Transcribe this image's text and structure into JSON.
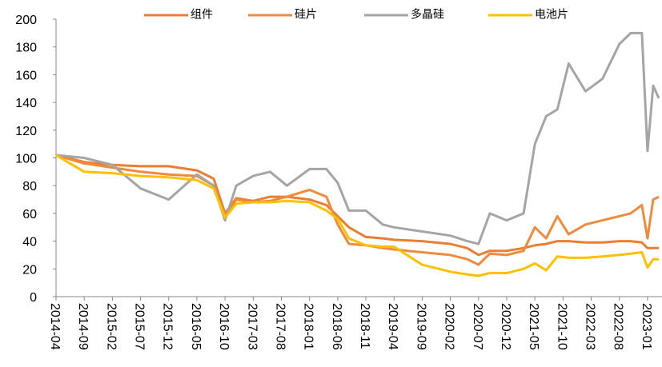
{
  "chart_data": {
    "type": "line",
    "x": [
      "2014-04",
      "2014-09",
      "2015-02",
      "2015-07",
      "2015-12",
      "2016-05",
      "2016-08",
      "2016-10",
      "2016-12",
      "2017-03",
      "2017-06",
      "2017-09",
      "2018-01",
      "2018-04",
      "2018-06",
      "2018-08",
      "2018-11",
      "2019-02",
      "2019-04",
      "2019-09",
      "2020-02",
      "2020-05",
      "2020-07",
      "2020-09",
      "2020-12",
      "2021-03",
      "2021-05",
      "2021-07",
      "2021-09",
      "2021-11",
      "2022-02",
      "2022-05",
      "2022-08",
      "2022-10",
      "2022-12",
      "2023-01",
      "2023-02",
      "2023-03"
    ],
    "series": [
      {
        "name": "组件",
        "color": "#ed7d31",
        "values": [
          102,
          97,
          95,
          94,
          94,
          91,
          85,
          60,
          71,
          69,
          72,
          72,
          70,
          66,
          58,
          50,
          43,
          42,
          41,
          40,
          38,
          35,
          30,
          33,
          33,
          35,
          37,
          38,
          40,
          40,
          39,
          39,
          40,
          40,
          39,
          35,
          35,
          35
        ]
      },
      {
        "name": "硅片",
        "color": "#f08a3c",
        "values": [
          102,
          96,
          93,
          90,
          88,
          87,
          80,
          58,
          70,
          68,
          69,
          72,
          77,
          72,
          52,
          38,
          37,
          35,
          34,
          32,
          30,
          27,
          23,
          31,
          30,
          33,
          50,
          42,
          58,
          45,
          52,
          55,
          58,
          60,
          66,
          42,
          70,
          72
        ]
      },
      {
        "name": "多晶硅",
        "color": "#a5a5a5",
        "values": [
          102,
          100,
          95,
          78,
          70,
          88,
          80,
          55,
          80,
          87,
          90,
          80,
          92,
          92,
          82,
          62,
          62,
          52,
          50,
          47,
          44,
          40,
          38,
          60,
          55,
          60,
          110,
          130,
          135,
          168,
          148,
          157,
          182,
          190,
          190,
          105,
          152,
          143
        ]
      },
      {
        "name": "电池片",
        "color": "#ffc000",
        "values": [
          102,
          90,
          89,
          87,
          86,
          84,
          78,
          57,
          67,
          68,
          68,
          69,
          68,
          62,
          56,
          42,
          37,
          36,
          36,
          23,
          18,
          16,
          15,
          17,
          17,
          20,
          24,
          19,
          29,
          28,
          28,
          29,
          30,
          31,
          32,
          21,
          27,
          27
        ]
      }
    ],
    "xlim": [
      "2014-04",
      "2023-03"
    ],
    "xticks": [
      "2014-04",
      "2014-09",
      "2015-02",
      "2015-07",
      "2015-12",
      "2016-05",
      "2016-10",
      "2017-03",
      "2017-08",
      "2018-01",
      "2018-06",
      "2018-11",
      "2019-04",
      "2019-09",
      "2020-02",
      "2020-07",
      "2020-12",
      "2021-05",
      "2021-10",
      "2022-03",
      "2022-08",
      "2023-01"
    ],
    "ylim": [
      0,
      200
    ],
    "yticks": [
      0,
      20,
      40,
      60,
      80,
      100,
      120,
      140,
      160,
      180,
      200
    ],
    "legend": "top"
  }
}
